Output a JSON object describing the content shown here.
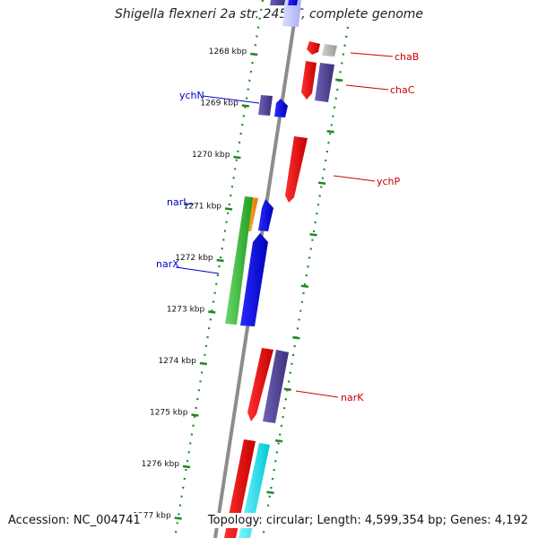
{
  "title": "Shigella flexneri 2a str. 2457T, complete genome",
  "accession": "Accession: NC_004741",
  "summary": "Topology: circular; Length: 4,599,354 bp; Genes: 4,192",
  "colors": {
    "backbone": "#8c8c8c",
    "tick_dots": "#1f8a1f",
    "forward_label": "#cc0000",
    "reverse_label": "#0000cc"
  },
  "ticks": [
    {
      "label": "1268 kbp",
      "pos": 1268
    },
    {
      "label": "1269 kbp",
      "pos": 1269
    },
    {
      "label": "1270 kbp",
      "pos": 1270
    },
    {
      "label": "1271 kbp",
      "pos": 1271
    },
    {
      "label": "1272 kbp",
      "pos": 1272
    },
    {
      "label": "1273 kbp",
      "pos": 1273
    },
    {
      "label": "1274 kbp",
      "pos": 1274
    },
    {
      "label": "1275 kbp",
      "pos": 1275
    },
    {
      "label": "1276 kbp",
      "pos": 1276
    },
    {
      "label": "1277 kbp",
      "pos": 1277
    }
  ],
  "gene_labels": [
    {
      "name": "chaB",
      "strand": "forward"
    },
    {
      "name": "chaC",
      "strand": "forward"
    },
    {
      "name": "ychP",
      "strand": "forward"
    },
    {
      "name": "narK",
      "strand": "forward"
    },
    {
      "name": "ychN",
      "strand": "reverse"
    },
    {
      "name": "narL",
      "strand": "reverse"
    },
    {
      "name": "narX",
      "strand": "reverse"
    }
  ]
}
